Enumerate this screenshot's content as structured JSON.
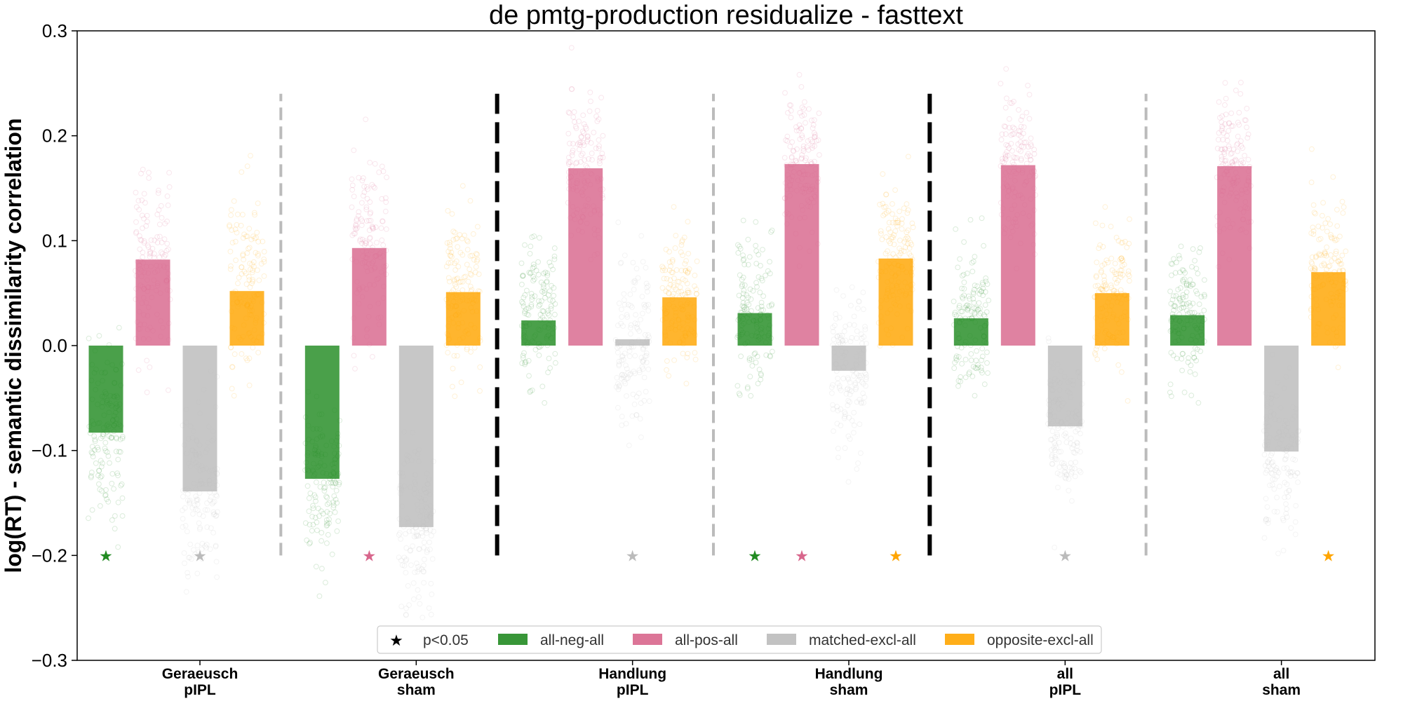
{
  "chart_data": {
    "type": "bar",
    "title": "de pmtg-production residualize - fasttext",
    "xlabel": "",
    "ylabel": "log(RT) - semantic dissimilarity correlation",
    "ylim": [
      -0.3,
      0.3
    ],
    "yticks": [
      -0.3,
      -0.2,
      -0.1,
      0.0,
      0.1,
      0.2,
      0.3
    ],
    "ytick_labels": [
      "−0.3",
      "−0.2",
      "−0.1",
      "0.0",
      "0.1",
      "0.2",
      "0.3"
    ],
    "grid": false,
    "legend_position": "bottom-center",
    "legend_marker_label": "p<0.05",
    "categories": [
      {
        "line1": "Geraeusch",
        "line2": "pIPL"
      },
      {
        "line1": "Geraeusch",
        "line2": "sham"
      },
      {
        "line1": "Handlung",
        "line2": "pIPL"
      },
      {
        "line1": "Handlung",
        "line2": "sham"
      },
      {
        "line1": "all",
        "line2": "pIPL"
      },
      {
        "line1": "all",
        "line2": "sham"
      }
    ],
    "separators": [
      {
        "after_group": 0,
        "style": "dashed",
        "color": "#bbbbbb"
      },
      {
        "after_group": 1,
        "style": "dashed",
        "color": "#000000"
      },
      {
        "after_group": 2,
        "style": "dashed",
        "color": "#bbbbbb"
      },
      {
        "after_group": 3,
        "style": "dashed",
        "color": "#000000"
      },
      {
        "after_group": 4,
        "style": "dashed",
        "color": "#bbbbbb"
      }
    ],
    "separator_y_range": [
      -0.2,
      0.24
    ],
    "significance_marker_y": -0.2,
    "series": [
      {
        "name": "all-neg-all",
        "color": "#228b22",
        "values": [
          -0.083,
          -0.127,
          0.024,
          0.031,
          0.026,
          0.029
        ],
        "spread": [
          0.2,
          0.18,
          0.17,
          0.17,
          0.16,
          0.16
        ],
        "significant": [
          true,
          false,
          false,
          true,
          false,
          false
        ]
      },
      {
        "name": "all-pos-all",
        "color": "#d8668c",
        "values": [
          0.082,
          0.093,
          0.169,
          0.173,
          0.172,
          0.171
        ],
        "spread": [
          0.2,
          0.2,
          0.17,
          0.17,
          0.17,
          0.17
        ],
        "significant": [
          false,
          true,
          false,
          true,
          false,
          false
        ]
      },
      {
        "name": "matched-excl-all",
        "color": "#bbbbbb",
        "values": [
          -0.139,
          -0.173,
          0.006,
          -0.024,
          -0.077,
          -0.101
        ],
        "spread": [
          0.2,
          0.18,
          0.18,
          0.18,
          0.17,
          0.17
        ],
        "significant": [
          true,
          false,
          true,
          false,
          true,
          false
        ]
      },
      {
        "name": "opposite-excl-all",
        "color": "#ffa500",
        "values": [
          0.052,
          0.051,
          0.046,
          0.083,
          0.05,
          0.07
        ],
        "spread": [
          0.2,
          0.18,
          0.17,
          0.17,
          0.16,
          0.16
        ],
        "significant": [
          false,
          false,
          false,
          true,
          false,
          true
        ]
      }
    ]
  }
}
